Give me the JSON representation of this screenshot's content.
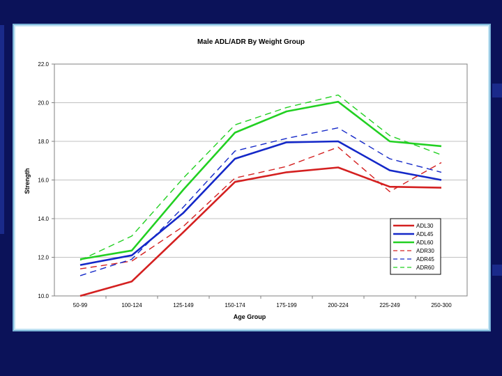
{
  "chart_data": {
    "type": "line",
    "title": "Male ADL/ADR  By Weight Group",
    "xlabel": "Age Group",
    "ylabel": "Strength",
    "ylim": [
      10.0,
      22.0
    ],
    "yticks": [
      "10.0",
      "12.0",
      "14.0",
      "16.0",
      "18.0",
      "20.0",
      "22.0"
    ],
    "categories": [
      "50-99",
      "100-124",
      "125-149",
      "150-174",
      "175-199",
      "200-224",
      "225-249",
      "250-300"
    ],
    "grid": true,
    "legend_position": "bottom-right",
    "series": [
      {
        "name": "ADL30",
        "color": "#d42020",
        "dash": "solid",
        "values": [
          10.0,
          10.75,
          13.3,
          15.9,
          16.4,
          16.65,
          15.65,
          15.6
        ]
      },
      {
        "name": "ADL45",
        "color": "#1428c8",
        "dash": "solid",
        "values": [
          11.6,
          12.1,
          14.3,
          17.1,
          17.95,
          18.0,
          16.5,
          16.0
        ]
      },
      {
        "name": "ADL60",
        "color": "#22d022",
        "dash": "solid",
        "values": [
          11.9,
          12.35,
          15.5,
          18.45,
          19.55,
          20.05,
          18.0,
          17.75
        ]
      },
      {
        "name": "ADR30",
        "color": "#d42020",
        "dash": "dashed",
        "values": [
          11.4,
          11.8,
          13.6,
          16.1,
          16.7,
          17.7,
          15.4,
          16.9
        ]
      },
      {
        "name": "ADR45",
        "color": "#1428c8",
        "dash": "dashed",
        "values": [
          11.05,
          11.9,
          14.6,
          17.5,
          18.15,
          18.7,
          17.1,
          16.4
        ]
      },
      {
        "name": "ADR60",
        "color": "#22d022",
        "dash": "dashed",
        "values": [
          11.85,
          13.1,
          16.1,
          18.85,
          19.75,
          20.4,
          18.3,
          17.3
        ]
      }
    ]
  }
}
